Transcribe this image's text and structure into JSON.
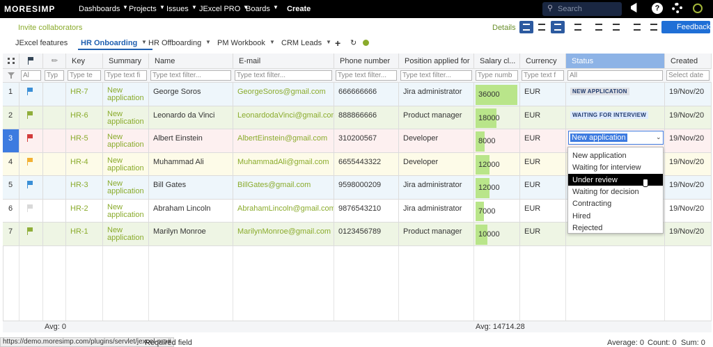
{
  "nav": {
    "logo": "MORESIMP",
    "menus": [
      "Dashboards",
      "Projects",
      "Issues",
      "JExcel PRO",
      "Boards"
    ],
    "create": "Create",
    "search": "Search"
  },
  "toolbar": {
    "invite": "Invite collaborators",
    "details": "Details",
    "feedback": "Feedback"
  },
  "tabs": {
    "items": [
      "JExcel features",
      "HR Onboarding",
      "HR Offboarding",
      "PM Workbook",
      "CRM Leads"
    ],
    "active": 1,
    "add": "+"
  },
  "table": {
    "headers": [
      "Key",
      "Summary",
      "Name",
      "E-mail",
      "Phone number",
      "Position applied for",
      "Salary cl...",
      "Currency",
      "Status",
      "Created"
    ],
    "filters": [
      "Al",
      "Typ",
      "Type te",
      "Type text fi",
      "Type text filter...",
      "Type text filter...",
      "Type text filter...",
      "Type text filter...",
      "Type numb",
      "Type text f",
      "All",
      "Select date"
    ],
    "rows": [
      {
        "num": 1,
        "flag": "#3b8fd6",
        "bg": "#eef6fb",
        "key": "HR-7",
        "summary": "New application",
        "name": "George Soros",
        "email": "GeorgeSoros@gmail.com",
        "phone": "666666666",
        "position": "Jira administrator",
        "salary": 36000,
        "currency": "EUR",
        "status": "NEW APPLICATION",
        "status_color": "#dfe1e6",
        "created": "19/Nov/20"
      },
      {
        "num": 2,
        "flag": "#8fae3a",
        "bg": "#eef5e4",
        "key": "HR-6",
        "summary": "New application",
        "name": "Leonardo da Vinci",
        "email": "LeonardodaVinci@gmail.com",
        "phone": "888866666",
        "position": "Product manager",
        "salary": 18000,
        "currency": "EUR",
        "status": "WAITING FOR INTERVIEW",
        "status_color": "#deebff",
        "created": "19/Nov/20"
      },
      {
        "num": 3,
        "flag": "#d23c3c",
        "bg": "#fdf0f0",
        "key": "HR-5",
        "summary": "New application",
        "name": "Albert Einstein",
        "email": "AlbertEinstein@gmail.com",
        "phone": "310200567",
        "position": "Developer",
        "salary": 8000,
        "currency": "EUR",
        "status": "New application",
        "created": "19/Nov/20"
      },
      {
        "num": 4,
        "flag": "#f2b134",
        "bg": "#fdfbe8",
        "key": "HR-4",
        "summary": "New application",
        "name": "Muhammad Ali",
        "email": "MuhammadAli@gmail.com",
        "phone": "6655443322",
        "position": "Developer",
        "salary": 12000,
        "currency": "EUR",
        "created": "19/Nov/20"
      },
      {
        "num": 5,
        "flag": "#3b8fd6",
        "bg": "#eef6fb",
        "key": "HR-3",
        "summary": "New application",
        "name": "Bill Gates",
        "email": "BillGates@gmail.com",
        "phone": "9598000209",
        "position": "Jira administrator",
        "salary": 12000,
        "currency": "EUR",
        "created": "19/Nov/20"
      },
      {
        "num": 6,
        "flag": "#d9d9d9",
        "bg": "#ffffff",
        "key": "HR-2",
        "summary": "New application",
        "name": "Abraham Lincoln",
        "email": "AbrahamLincoln@gmail.com",
        "phone": "9876543210",
        "position": "Jira administrator",
        "salary": 7000,
        "currency": "EUR",
        "created": "19/Nov/20"
      },
      {
        "num": 7,
        "flag": "#8fae3a",
        "bg": "#eef5e4",
        "key": "HR-1",
        "summary": "New application",
        "name": "Marilyn Monroe",
        "email": "MarilynMonroe@gmail.com",
        "phone": "0123456789",
        "position": "Product manager",
        "salary": 10000,
        "currency": "EUR",
        "created": "19/Nov/20"
      }
    ],
    "footer": {
      "attach_avg": "Avg: 0",
      "salary_avg": "Avg: 14714.28"
    }
  },
  "dropdown": {
    "row": 2,
    "options": [
      "New application",
      "Waiting for interview",
      "Under review",
      "Waiting for decision",
      "Contracting",
      "Hired",
      "Rejected"
    ],
    "highlighted": 2
  },
  "statusbar": {
    "url": "https://demo.moresimp.com/plugins/servlet/jexcel-pro#",
    "required": "Required field",
    "average": "Average: 0",
    "count": "Count: 0",
    "sum": "Sum: 0"
  }
}
